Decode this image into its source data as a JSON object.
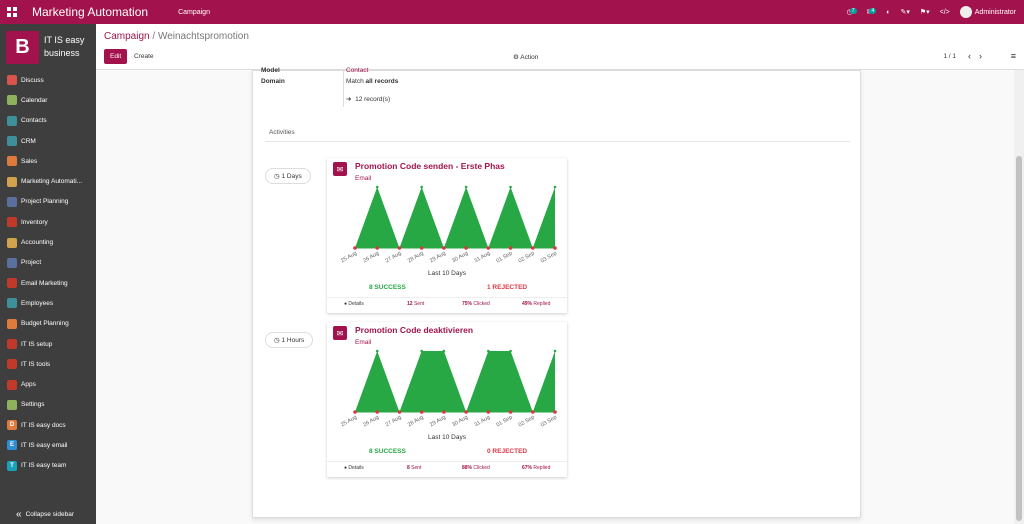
{
  "topbar": {
    "title": "Marketing Automation",
    "menu": "Campaign",
    "activity_count": "7",
    "message_count": "4",
    "user": "Administrator"
  },
  "sidebar": {
    "company_letter": "B",
    "company_line1": "IT IS easy",
    "company_line2": "business",
    "items": [
      {
        "label": "Discuss",
        "color": "#d9534f"
      },
      {
        "label": "Calendar",
        "color": "#8fb05c"
      },
      {
        "label": "Contacts",
        "color": "#3d8f9a"
      },
      {
        "label": "CRM",
        "color": "#3d8f9a"
      },
      {
        "label": "Sales",
        "color": "#e07a3c"
      },
      {
        "label": "Marketing Automati...",
        "color": "#d2a24c"
      },
      {
        "label": "Project Planning",
        "color": "#5b6f9e"
      },
      {
        "label": "Inventory",
        "color": "#c0392b"
      },
      {
        "label": "Accounting",
        "color": "#d2a24c"
      },
      {
        "label": "Project",
        "color": "#5b6f9e"
      },
      {
        "label": "Email Marketing",
        "color": "#c0392b"
      },
      {
        "label": "Employees",
        "color": "#3d8f9a"
      },
      {
        "label": "Budget Planning",
        "color": "#e07a3c"
      },
      {
        "label": "IT IS setup",
        "color": "#c0392b"
      },
      {
        "label": "IT IS tools",
        "color": "#c0392b"
      },
      {
        "label": "Apps",
        "color": "#c0392b"
      },
      {
        "label": "Settings",
        "color": "#8fb05c"
      },
      {
        "label": "IT IS easy docs",
        "color": "#e07a3c",
        "letter": "D"
      },
      {
        "label": "IT IS easy email",
        "color": "#2d8fd5",
        "letter": "E"
      },
      {
        "label": "IT IS easy team",
        "color": "#17a2b8",
        "letter": "T"
      }
    ],
    "collapse": "Collapse sidebar"
  },
  "control": {
    "breadcrumb_parent": "Campaign",
    "breadcrumb_sep": "/",
    "breadcrumb_current": "Weinachtspromotion",
    "edit": "Edit",
    "create": "Create",
    "action": "Action",
    "pager": "1 / 1"
  },
  "form": {
    "model_label": "Model",
    "model_value": "Contact",
    "domain_label": "Domain",
    "domain_match": "Match",
    "domain_all": "all records",
    "records": "12 record(s)",
    "activities_label": "Activities"
  },
  "activities": [
    {
      "trigger": "1 Days",
      "title": "Promotion Code senden - Erste Phas",
      "type": "Email",
      "dates": [
        "25 Aug",
        "26 Aug",
        "27 Aug",
        "28 Aug",
        "29 Aug",
        "30 Aug",
        "31 Aug",
        "01 Sep",
        "02 Sep",
        "03 Sep"
      ],
      "success_values": [
        0,
        1,
        0,
        1,
        0,
        1,
        0,
        1,
        0,
        1
      ],
      "rejected_values": [
        0,
        0,
        0,
        0,
        0,
        0,
        0,
        0,
        0,
        0
      ],
      "period": "Last 10 Days",
      "success": "8 SUCCESS",
      "rejected": "1 REJECTED",
      "details": "Details",
      "sent_n": "12",
      "sent": "Sent",
      "clicked_n": "75%",
      "clicked": "Clicked",
      "replied_n": "49%",
      "replied": "Replied"
    },
    {
      "trigger": "1 Hours",
      "title": "Promotion Code deaktivieren",
      "type": "Email",
      "dates": [
        "25 Aug",
        "26 Aug",
        "27 Aug",
        "28 Aug",
        "29 Aug",
        "30 Aug",
        "31 Aug",
        "01 Sep",
        "02 Sep",
        "03 Sep"
      ],
      "success_values": [
        0,
        1,
        0,
        1,
        1,
        0,
        1,
        1,
        0,
        1
      ],
      "rejected_values": [
        0,
        0,
        0,
        0,
        0,
        0,
        0,
        0,
        0,
        0
      ],
      "period": "Last 10 Days",
      "success": "8 SUCCESS",
      "rejected": "0 REJECTED",
      "details": "Details",
      "sent_n": "8",
      "sent": "Sent",
      "clicked_n": "88%",
      "clicked": "Clicked",
      "replied_n": "67%",
      "replied": "Replied"
    }
  ],
  "colors": {
    "brand": "#a2134d",
    "success": "#28a745",
    "rejected": "#dc3545"
  }
}
